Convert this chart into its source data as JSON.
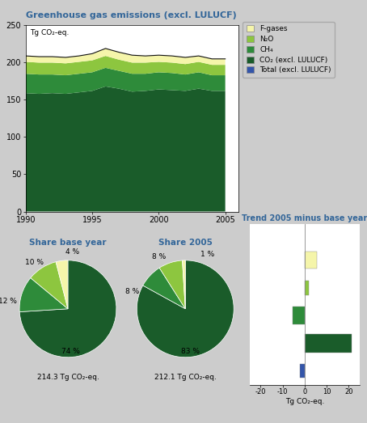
{
  "title": "Greenhouse gas emissions (excl. LULUCF)",
  "ylabel_area": "Tg CO₂-eq.",
  "colors": {
    "CO2": "#1a5c2a",
    "CH4": "#2e8b3a",
    "N2O": "#8dc63f",
    "Fgas": "#f5f5aa",
    "total_line": "#111111",
    "blue": "#3355aa"
  },
  "years": [
    1990,
    1991,
    1992,
    1993,
    1994,
    1995,
    1996,
    1997,
    1998,
    1999,
    2000,
    2001,
    2002,
    2003,
    2004,
    2005
  ],
  "CO2": [
    159,
    158,
    159,
    158,
    160,
    162,
    168,
    165,
    161,
    162,
    164,
    163,
    162,
    165,
    162,
    162
  ],
  "CH4": [
    26,
    26,
    25,
    25,
    25,
    25,
    25,
    24,
    24,
    23,
    23,
    23,
    22,
    22,
    21,
    21
  ],
  "N2O": [
    16,
    16,
    16,
    16,
    16,
    16,
    16,
    15,
    15,
    15,
    14,
    14,
    14,
    14,
    14,
    14
  ],
  "Fgas": [
    8,
    8,
    8,
    8,
    8,
    9,
    10,
    10,
    10,
    9,
    9,
    9,
    9,
    8,
    8,
    8
  ],
  "total": [
    209,
    208,
    208,
    207,
    209,
    212,
    219,
    214,
    210,
    209,
    210,
    209,
    207,
    209,
    205,
    205
  ],
  "background": "#cccccc",
  "plot_bg": "#ffffff",
  "title_color": "#336699",
  "subtitle_color": "#336699",
  "pie1_values": [
    74,
    12,
    10,
    4
  ],
  "pie2_values": [
    83,
    8,
    8,
    1
  ],
  "pie_colors": [
    "#1a5c2a",
    "#2e8b3a",
    "#8dc63f",
    "#f5f5aa"
  ],
  "pie1_labels": [
    "74 %",
    "12 %",
    "10 %",
    "4 %"
  ],
  "pie2_labels": [
    "83 %",
    "8 %",
    "8 %",
    "1 %"
  ],
  "pie1_total": "214.3 Tg CO₂-eq.",
  "pie2_total": "212.1 Tg CO₂-eq.",
  "bar_values": [
    5.4,
    2.0,
    -5.5,
    21.5,
    -2.2
  ],
  "bar_colors_trend": [
    "#f5f5aa",
    "#8dc63f",
    "#2e8b3a",
    "#1a5c2a",
    "#3355aa"
  ],
  "trend_xlabel": "Tg CO₂-eq.",
  "trend_title": "Trend 2005 minus base year",
  "legend_labels": [
    "F-gases",
    "N₂O",
    "CH₄",
    "CO₂ (excl. LULUCF)",
    "Total (excl. LULUCF)"
  ],
  "legend_colors": [
    "#f5f5aa",
    "#8dc63f",
    "#2e8b3a",
    "#1a5c2a",
    "#3355aa"
  ]
}
